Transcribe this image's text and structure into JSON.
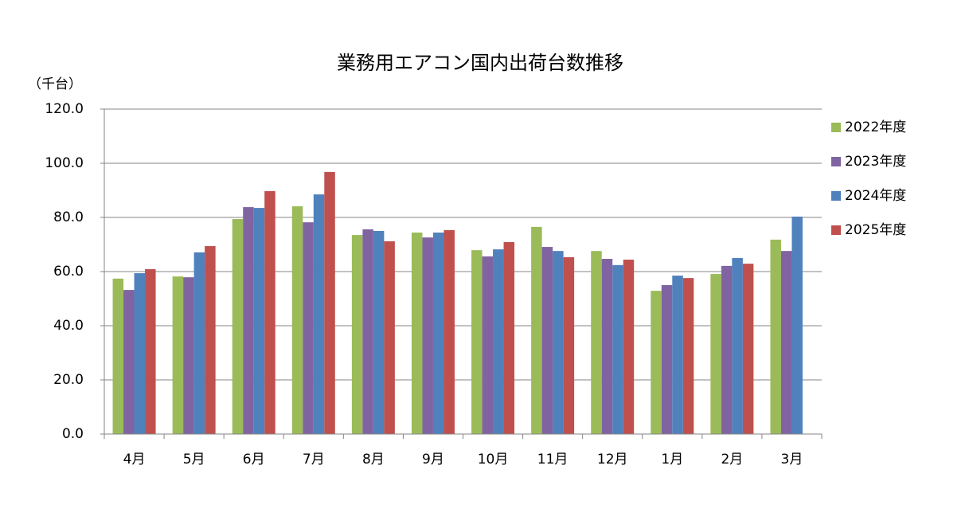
{
  "chart_data": {
    "type": "bar",
    "title": "業務用エアコン国内出荷台数推移",
    "y_label": "（千台）",
    "categories": [
      "4月",
      "5月",
      "6月",
      "7月",
      "8月",
      "9月",
      "10月",
      "11月",
      "12月",
      "1月",
      "2月",
      "3月"
    ],
    "series": [
      {
        "name": "2022年度",
        "color": "#9bbb59",
        "values": [
          57.4,
          58.2,
          79.4,
          84.1,
          73.5,
          74.4,
          67.9,
          76.5,
          67.6,
          52.9,
          59.1,
          71.8
        ]
      },
      {
        "name": "2023年度",
        "color": "#8064a2",
        "values": [
          53.2,
          57.9,
          83.8,
          78.2,
          75.6,
          72.6,
          65.6,
          69.1,
          64.7,
          55.0,
          62.1,
          67.6
        ]
      },
      {
        "name": "2024年度",
        "color": "#4f81bd",
        "values": [
          59.4,
          67.1,
          83.5,
          88.5,
          75.0,
          74.4,
          68.2,
          67.6,
          62.4,
          58.5,
          65.0,
          80.3
        ]
      },
      {
        "name": "2025年度",
        "color": "#c0504d",
        "values": [
          60.9,
          69.4,
          89.7,
          96.8,
          71.2,
          75.3,
          70.9,
          65.3,
          64.4,
          57.6,
          62.9,
          null
        ]
      }
    ],
    "ylim": [
      0,
      120
    ],
    "yticks": [
      {
        "value": 0,
        "label": "0.0"
      },
      {
        "value": 20,
        "label": "20.0"
      },
      {
        "value": 40,
        "label": "40.0"
      },
      {
        "value": 60,
        "label": "60.0"
      },
      {
        "value": 80,
        "label": "80.0"
      },
      {
        "value": 100,
        "label": "100.0"
      },
      {
        "value": 120,
        "label": "120.0"
      }
    ],
    "grid": true,
    "legend": "right"
  }
}
